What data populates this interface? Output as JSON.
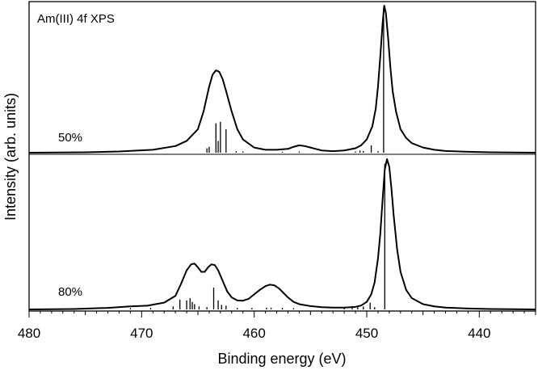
{
  "chart_data": {
    "type": "line",
    "title": "Am(III) 4f XPS",
    "xlabel": "Binding energy (eV)",
    "ylabel": "Intensity (arb. units)",
    "xlim": [
      480,
      435
    ],
    "x_reversed": true,
    "x_ticks": [
      480,
      470,
      460,
      450,
      440
    ],
    "x_minor_step": 1,
    "x_medium_step": 5,
    "y_ticks": [],
    "grid": false,
    "legend": "none",
    "line_color": "#000000",
    "series": [
      {
        "label": "50%",
        "x": [
          480,
          475,
          472,
          469,
          467,
          466,
          465,
          464.5,
          464,
          463.7,
          463.4,
          463.1,
          462.8,
          462.5,
          462,
          461.5,
          461,
          460,
          459,
          458,
          457,
          456.5,
          456,
          455.5,
          455,
          454.5,
          454,
          453,
          452,
          451,
          450.5,
          450,
          449.5,
          449.2,
          449,
          448.8,
          448.6,
          448.45,
          448.3,
          448.1,
          447.9,
          447.7,
          447.4,
          447,
          446.5,
          446,
          445,
          444,
          443,
          441,
          439,
          437,
          435
        ],
        "y": [
          0.0,
          0.003,
          0.008,
          0.02,
          0.045,
          0.08,
          0.16,
          0.28,
          0.45,
          0.53,
          0.56,
          0.55,
          0.5,
          0.42,
          0.28,
          0.16,
          0.09,
          0.035,
          0.02,
          0.02,
          0.026,
          0.04,
          0.05,
          0.045,
          0.035,
          0.025,
          0.015,
          0.01,
          0.015,
          0.03,
          0.05,
          0.09,
          0.18,
          0.3,
          0.45,
          0.65,
          0.87,
          1.0,
          0.95,
          0.78,
          0.58,
          0.42,
          0.28,
          0.16,
          0.1,
          0.065,
          0.035,
          0.02,
          0.012,
          0.006,
          0.003,
          0.0015,
          0.0
        ],
        "sticks": [
          {
            "x": 464.2,
            "h": 0.03
          },
          {
            "x": 464.0,
            "h": 0.04
          },
          {
            "x": 463.4,
            "h": 0.2
          },
          {
            "x": 463.2,
            "h": 0.08
          },
          {
            "x": 463.0,
            "h": 0.21
          },
          {
            "x": 462.5,
            "h": 0.16
          },
          {
            "x": 461.6,
            "h": 0.01
          },
          {
            "x": 461.0,
            "h": 0.008
          },
          {
            "x": 457.5,
            "h": 0.006
          },
          {
            "x": 456.0,
            "h": 0.008
          },
          {
            "x": 451.0,
            "h": 0.008
          },
          {
            "x": 450.6,
            "h": 0.015
          },
          {
            "x": 450.3,
            "h": 0.012
          },
          {
            "x": 449.6,
            "h": 0.05
          },
          {
            "x": 449.0,
            "h": 0.01
          },
          {
            "x": 448.5,
            "h": 0.98
          }
        ]
      },
      {
        "label": "80%",
        "x": [
          480,
          476,
          473,
          471,
          469.5,
          468,
          467,
          466.5,
          466,
          465.6,
          465.3,
          465,
          464.7,
          464.4,
          464.1,
          463.8,
          463.5,
          463.2,
          462.8,
          462.4,
          462,
          461.5,
          461,
          460.5,
          460,
          459.5,
          459,
          458.6,
          458.2,
          457.8,
          457.4,
          457,
          456.5,
          456,
          455,
          454,
          453,
          452,
          451,
          450.5,
          450,
          449.6,
          449.3,
          449,
          448.8,
          448.6,
          448.4,
          448.2,
          448.0,
          447.8,
          447.6,
          447.3,
          447,
          446.5,
          446,
          445,
          444,
          443,
          441,
          439,
          437,
          435
        ],
        "y": [
          0.0,
          0.003,
          0.01,
          0.02,
          0.025,
          0.045,
          0.09,
          0.17,
          0.26,
          0.3,
          0.305,
          0.28,
          0.25,
          0.25,
          0.28,
          0.3,
          0.295,
          0.26,
          0.19,
          0.12,
          0.08,
          0.06,
          0.058,
          0.07,
          0.1,
          0.13,
          0.155,
          0.165,
          0.16,
          0.14,
          0.11,
          0.08,
          0.05,
          0.035,
          0.022,
          0.015,
          0.012,
          0.012,
          0.017,
          0.026,
          0.05,
          0.1,
          0.18,
          0.34,
          0.5,
          0.72,
          0.93,
          1.0,
          0.95,
          0.8,
          0.62,
          0.4,
          0.25,
          0.13,
          0.075,
          0.035,
          0.02,
          0.012,
          0.006,
          0.003,
          0.0015,
          0.0
        ],
        "sticks": [
          {
            "x": 471.0,
            "h": 0.008
          },
          {
            "x": 469.2,
            "h": 0.01
          },
          {
            "x": 467.2,
            "h": 0.02
          },
          {
            "x": 466.6,
            "h": 0.065
          },
          {
            "x": 466.0,
            "h": 0.06
          },
          {
            "x": 465.7,
            "h": 0.075
          },
          {
            "x": 465.5,
            "h": 0.05
          },
          {
            "x": 465.3,
            "h": 0.035
          },
          {
            "x": 464.9,
            "h": 0.02
          },
          {
            "x": 464.2,
            "h": 0.015
          },
          {
            "x": 463.6,
            "h": 0.145
          },
          {
            "x": 463.2,
            "h": 0.06
          },
          {
            "x": 462.9,
            "h": 0.03
          },
          {
            "x": 462.5,
            "h": 0.025
          },
          {
            "x": 461.5,
            "h": 0.01
          },
          {
            "x": 460.2,
            "h": 0.01
          },
          {
            "x": 458.9,
            "h": 0.012
          },
          {
            "x": 458.5,
            "h": 0.012
          },
          {
            "x": 457.5,
            "h": 0.01
          },
          {
            "x": 456.5,
            "h": 0.008
          },
          {
            "x": 452.0,
            "h": 0.01
          },
          {
            "x": 451.3,
            "h": 0.012
          },
          {
            "x": 450.8,
            "h": 0.015
          },
          {
            "x": 450.3,
            "h": 0.02
          },
          {
            "x": 449.7,
            "h": 0.045
          },
          {
            "x": 449.3,
            "h": 0.015
          },
          {
            "x": 448.4,
            "h": 0.97
          }
        ]
      }
    ]
  }
}
